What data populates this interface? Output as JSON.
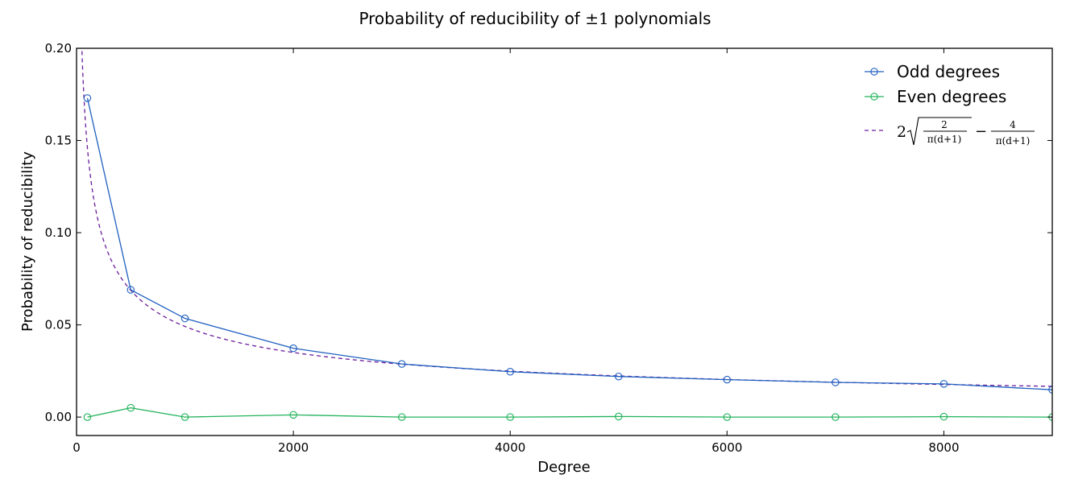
{
  "chart_data": {
    "type": "line",
    "title_prefix": "Probability of reducibility of ",
    "title_math": "±1",
    "title_suffix": " polynomials",
    "xlabel": "Degree",
    "ylabel": "Probability of reducibility",
    "xlim": [
      0,
      9000
    ],
    "ylim": [
      -0.01,
      0.2
    ],
    "xticks": [
      0,
      2000,
      4000,
      6000,
      8000
    ],
    "xtick_labels": [
      "0",
      "2000",
      "4000",
      "6000",
      "8000"
    ],
    "yticks": [
      0.0,
      0.05,
      0.1,
      0.15,
      0.2
    ],
    "ytick_labels": [
      "0.00",
      "0.05",
      "0.10",
      "0.15",
      "0.20"
    ],
    "grid": false,
    "legend_position": "top-right",
    "series": [
      {
        "name": "Odd degrees",
        "color": "#1f5fbf",
        "marker": "open-circle",
        "x": [
          100,
          500,
          1000,
          2000,
          3000,
          4000,
          5000,
          6000,
          7000,
          8000,
          9000
        ],
        "y": [
          0.173,
          0.069,
          0.0535,
          0.0373,
          0.0288,
          0.0246,
          0.022,
          0.0203,
          0.0188,
          0.018,
          0.0148
        ]
      },
      {
        "name": "Even degrees",
        "color": "#22b35a",
        "marker": "open-circle",
        "x": [
          100,
          500,
          1000,
          2000,
          3000,
          4000,
          5000,
          6000,
          7000,
          8000,
          9000
        ],
        "y": [
          0.0,
          0.005,
          0.0,
          0.0012,
          0.0,
          0.0,
          0.0003,
          0.0,
          0.0,
          0.0002,
          0.0
        ]
      }
    ],
    "curve": {
      "color": "#6a1b9a",
      "style": "dashed",
      "formula": "2*sqrt(2/(pi*(d+1))) - 4/(pi*(d+1))",
      "x_start": 50,
      "x_end": 9000,
      "legend_math": {
        "coef": "2",
        "num1": "2",
        "den1": "π(d+1)",
        "minus": "−",
        "num2": "4",
        "den2": "π(d+1)"
      }
    }
  }
}
